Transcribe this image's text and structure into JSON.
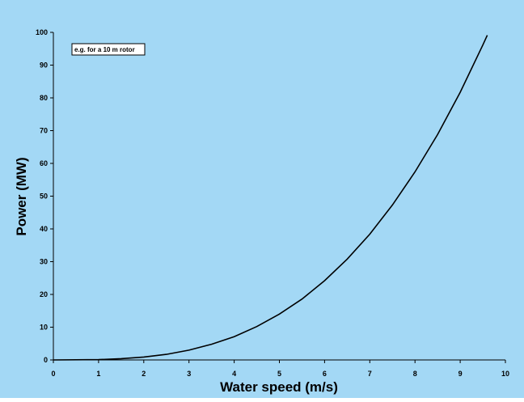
{
  "chart_data": {
    "type": "line",
    "title": "",
    "xlabel": "Water speed (m/s)",
    "ylabel": "Power (MW)",
    "xlim": [
      0,
      10
    ],
    "ylim": [
      0,
      100
    ],
    "xticks": [
      "0",
      "1",
      "2",
      "3",
      "4",
      "5",
      "6",
      "7",
      "8",
      "9",
      "10"
    ],
    "yticks": [
      "0",
      "10",
      "20",
      "30",
      "40",
      "50",
      "60",
      "70",
      "80",
      "90",
      "100"
    ],
    "grid": false,
    "annotation": "e.g. for a 10 m rotor",
    "series": [
      {
        "x": [
          1,
          1.5,
          2,
          2.5,
          3,
          3.5,
          4,
          4.5,
          5,
          5.5,
          6,
          6.5,
          7,
          7.5,
          8,
          8.5,
          9,
          9.5,
          9.6
        ],
        "y": [
          0.1,
          0.4,
          0.9,
          1.7,
          3.0,
          4.8,
          7.1,
          10.2,
          14.0,
          18.6,
          24.2,
          30.8,
          38.4,
          47.3,
          57.4,
          68.8,
          81.7,
          96.1,
          99.1
        ]
      }
    ]
  },
  "colors": {
    "background": "#a3d8f5",
    "line": "#000000",
    "axis": "#000000",
    "annotation_box": "#ffffff"
  }
}
